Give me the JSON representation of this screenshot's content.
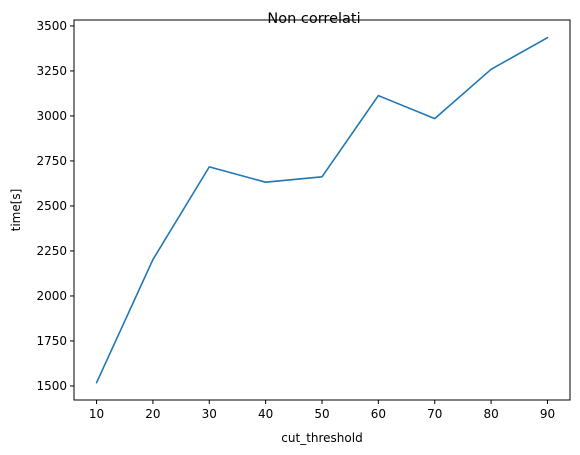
{
  "chart_data": {
    "type": "line",
    "title": "Non correlati",
    "xlabel": "cut_threshold",
    "ylabel": "time[s]",
    "x": [
      10,
      20,
      30,
      40,
      50,
      60,
      70,
      80,
      90
    ],
    "series": [
      {
        "values": [
          1518,
          2202,
          2717,
          2632,
          2662,
          3113,
          2985,
          3259,
          3435
        ],
        "color": "#1f77b4"
      }
    ],
    "xlim": [
      6,
      94
    ],
    "ylim": [
      1422,
      3533
    ],
    "xticks": [
      10,
      20,
      30,
      40,
      50,
      60,
      70,
      80,
      90
    ],
    "yticks": [
      1500,
      1750,
      2000,
      2250,
      2500,
      2750,
      3000,
      3250,
      3500
    ],
    "grid": false,
    "legend": "none"
  }
}
